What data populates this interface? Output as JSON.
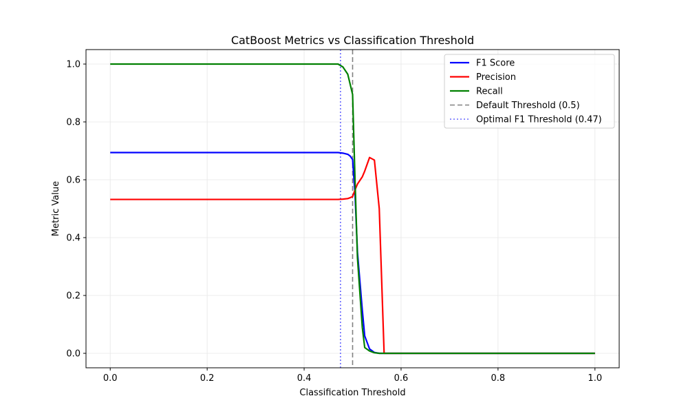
{
  "chart_data": {
    "type": "line",
    "title": "CatBoost Metrics vs Classification Threshold",
    "xlabel": "Classification Threshold",
    "ylabel": "Metric Value",
    "xlim": [
      -0.05,
      1.05
    ],
    "ylim": [
      -0.05,
      1.05
    ],
    "xticks": [
      0.0,
      0.2,
      0.4,
      0.6,
      0.8,
      1.0
    ],
    "xtick_labels": [
      "0.0",
      "0.2",
      "0.4",
      "0.6",
      "0.8",
      "1.0"
    ],
    "yticks": [
      0.0,
      0.2,
      0.4,
      0.6,
      0.8,
      1.0
    ],
    "ytick_labels": [
      "0.0",
      "0.2",
      "0.4",
      "0.6",
      "0.8",
      "1.0"
    ],
    "grid": true,
    "legend_position": "top-right",
    "series": [
      {
        "name": "F1 Score",
        "color": "#0000ff",
        "style": "solid",
        "x": [
          0.0,
          0.47,
          0.48,
          0.49,
          0.495,
          0.5,
          0.505,
          0.51,
          0.52,
          0.525,
          0.535,
          0.545,
          0.555,
          0.565,
          0.6,
          1.0
        ],
        "y": [
          0.694,
          0.694,
          0.692,
          0.688,
          0.682,
          0.67,
          0.55,
          0.35,
          0.15,
          0.06,
          0.015,
          0.003,
          0.0,
          0.0,
          0.0,
          0.0
        ]
      },
      {
        "name": "Precision",
        "color": "#ff0000",
        "style": "solid",
        "x": [
          0.0,
          0.47,
          0.48,
          0.49,
          0.495,
          0.5,
          0.505,
          0.51,
          0.52,
          0.525,
          0.535,
          0.545,
          0.555,
          0.565,
          0.6,
          1.0
        ],
        "y": [
          0.532,
          0.532,
          0.533,
          0.535,
          0.538,
          0.542,
          0.565,
          0.585,
          0.61,
          0.63,
          0.677,
          0.668,
          0.5,
          0.0,
          0.0,
          0.0
        ]
      },
      {
        "name": "Recall",
        "color": "#008000",
        "style": "solid",
        "x": [
          0.0,
          0.47,
          0.48,
          0.49,
          0.495,
          0.5,
          0.505,
          0.51,
          0.52,
          0.525,
          0.535,
          0.545,
          0.555,
          0.565,
          0.6,
          1.0
        ],
        "y": [
          1.0,
          1.0,
          0.99,
          0.965,
          0.93,
          0.895,
          0.6,
          0.33,
          0.09,
          0.02,
          0.008,
          0.002,
          0.0,
          0.0,
          0.0,
          0.0
        ]
      }
    ],
    "reference_lines": [
      {
        "name": "Default Threshold (0.5)",
        "x": 0.5,
        "color": "#808080",
        "style": "dashed"
      },
      {
        "name": "Optimal F1 Threshold (0.47)",
        "x": 0.475,
        "color": "#6666ff",
        "style": "dotted"
      }
    ]
  }
}
